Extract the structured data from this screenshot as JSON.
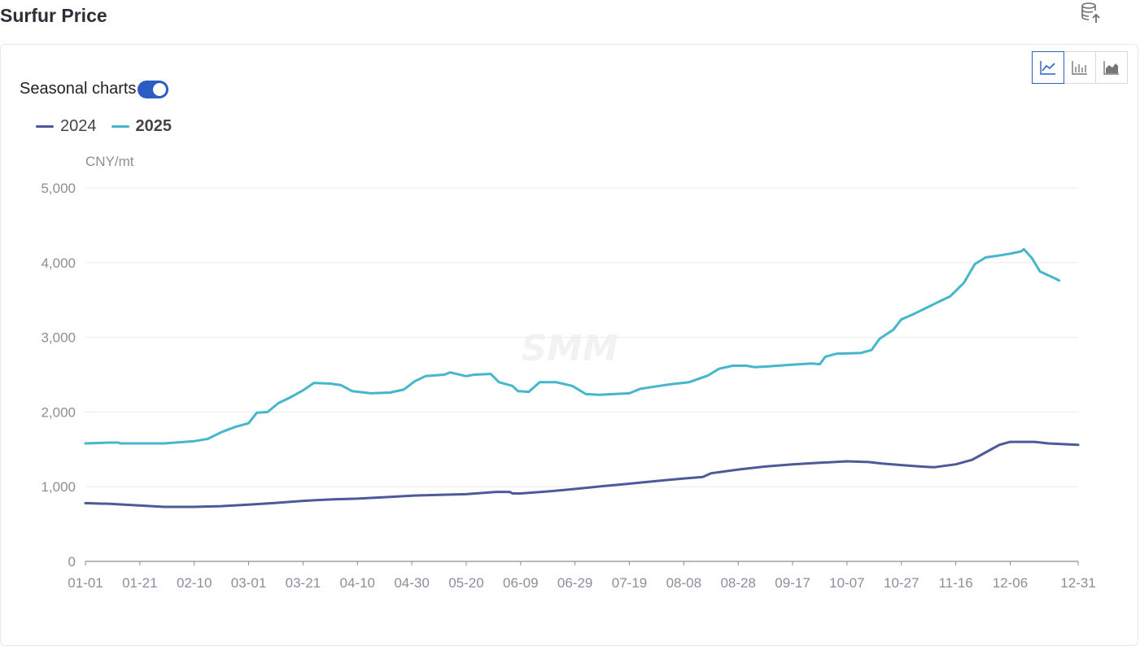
{
  "page": {
    "title": "Surfur Price"
  },
  "toolbar": {
    "export_icon": "database-export-icon",
    "chart_types": [
      {
        "name": "line",
        "icon": "line-chart-icon",
        "active": true
      },
      {
        "name": "bar",
        "icon": "bar-chart-icon",
        "active": false
      },
      {
        "name": "area",
        "icon": "area-chart-icon",
        "active": false
      }
    ]
  },
  "seasonal": {
    "label": "Seasonal charts",
    "enabled": true
  },
  "watermark": "SMM",
  "colors": {
    "series_2024": "#4d5a9a",
    "series_2025": "#45b6cc",
    "toggle": "#2d5bc4",
    "grid": "#ececec",
    "axis": "#8a8f99"
  },
  "chart_data": {
    "type": "line",
    "yunit": "CNY/mt",
    "ylim": [
      0,
      5000
    ],
    "yticks": [
      0,
      1000,
      2000,
      3000,
      4000,
      5000
    ],
    "ytick_labels": [
      "0",
      "1,000",
      "2,000",
      "3,000",
      "4,000",
      "5,000"
    ],
    "xtick_labels": [
      "01-01",
      "01-21",
      "02-10",
      "03-01",
      "03-21",
      "04-10",
      "04-30",
      "05-20",
      "06-09",
      "06-29",
      "07-19",
      "08-08",
      "08-28",
      "09-17",
      "10-07",
      "10-27",
      "11-16",
      "12-06",
      "12-31"
    ],
    "xtick_days": [
      1,
      21,
      41,
      61,
      81,
      101,
      121,
      141,
      161,
      181,
      201,
      221,
      241,
      261,
      281,
      301,
      321,
      341,
      366
    ],
    "xlim_days": [
      1,
      366
    ],
    "legend_position": "top-left",
    "grid": true,
    "series": [
      {
        "name": "2024",
        "bold": false,
        "points": [
          [
            "01-01",
            780
          ],
          [
            "01-10",
            770
          ],
          [
            "01-20",
            750
          ],
          [
            "01-30",
            730
          ],
          [
            "02-10",
            730
          ],
          [
            "02-20",
            740
          ],
          [
            "03-01",
            760
          ],
          [
            "03-10",
            780
          ],
          [
            "03-21",
            810
          ],
          [
            "04-01",
            830
          ],
          [
            "04-10",
            840
          ],
          [
            "04-20",
            860
          ],
          [
            "04-30",
            880
          ],
          [
            "05-10",
            890
          ],
          [
            "05-20",
            900
          ],
          [
            "05-31",
            930
          ],
          [
            "06-05",
            930
          ],
          [
            "06-06",
            910
          ],
          [
            "06-09",
            910
          ],
          [
            "06-20",
            940
          ],
          [
            "06-29",
            970
          ],
          [
            "07-10",
            1010
          ],
          [
            "07-19",
            1040
          ],
          [
            "07-30",
            1080
          ],
          [
            "08-08",
            1110
          ],
          [
            "08-15",
            1130
          ],
          [
            "08-18",
            1180
          ],
          [
            "08-28",
            1230
          ],
          [
            "09-07",
            1270
          ],
          [
            "09-17",
            1300
          ],
          [
            "09-27",
            1320
          ],
          [
            "10-07",
            1340
          ],
          [
            "10-15",
            1330
          ],
          [
            "10-20",
            1310
          ],
          [
            "10-27",
            1290
          ],
          [
            "11-03",
            1270
          ],
          [
            "11-08",
            1260
          ],
          [
            "11-16",
            1300
          ],
          [
            "11-22",
            1360
          ],
          [
            "11-27",
            1460
          ],
          [
            "12-02",
            1560
          ],
          [
            "12-06",
            1600
          ],
          [
            "12-15",
            1600
          ],
          [
            "12-20",
            1580
          ],
          [
            "12-31",
            1560
          ]
        ]
      },
      {
        "name": "2025",
        "bold": true,
        "points": [
          [
            "01-01",
            1580
          ],
          [
            "01-10",
            1590
          ],
          [
            "01-13",
            1590
          ],
          [
            "01-14",
            1580
          ],
          [
            "01-30",
            1580
          ],
          [
            "02-10",
            1610
          ],
          [
            "02-15",
            1640
          ],
          [
            "02-20",
            1730
          ],
          [
            "02-25",
            1800
          ],
          [
            "03-01",
            1850
          ],
          [
            "03-04",
            1990
          ],
          [
            "03-08",
            2000
          ],
          [
            "03-12",
            2120
          ],
          [
            "03-16",
            2190
          ],
          [
            "03-21",
            2290
          ],
          [
            "03-25",
            2390
          ],
          [
            "03-31",
            2380
          ],
          [
            "04-04",
            2360
          ],
          [
            "04-08",
            2280
          ],
          [
            "04-15",
            2250
          ],
          [
            "04-22",
            2260
          ],
          [
            "04-27",
            2300
          ],
          [
            "05-01",
            2410
          ],
          [
            "05-05",
            2480
          ],
          [
            "05-12",
            2500
          ],
          [
            "05-14",
            2530
          ],
          [
            "05-20",
            2480
          ],
          [
            "05-23",
            2500
          ],
          [
            "05-29",
            2510
          ],
          [
            "06-01",
            2400
          ],
          [
            "06-06",
            2350
          ],
          [
            "06-08",
            2280
          ],
          [
            "06-12",
            2270
          ],
          [
            "06-16",
            2400
          ],
          [
            "06-22",
            2400
          ],
          [
            "06-28",
            2350
          ],
          [
            "07-03",
            2240
          ],
          [
            "07-08",
            2230
          ],
          [
            "07-13",
            2240
          ],
          [
            "07-19",
            2250
          ],
          [
            "07-23",
            2310
          ],
          [
            "07-30",
            2350
          ],
          [
            "08-03",
            2370
          ],
          [
            "08-10",
            2400
          ],
          [
            "08-17",
            2490
          ],
          [
            "08-21",
            2580
          ],
          [
            "08-26",
            2620
          ],
          [
            "08-31",
            2620
          ],
          [
            "09-03",
            2600
          ],
          [
            "09-08",
            2610
          ],
          [
            "09-15",
            2630
          ],
          [
            "09-20",
            2640
          ],
          [
            "09-24",
            2650
          ],
          [
            "09-27",
            2640
          ],
          [
            "09-29",
            2740
          ],
          [
            "10-03",
            2780
          ],
          [
            "10-12",
            2790
          ],
          [
            "10-16",
            2830
          ],
          [
            "10-19",
            2980
          ],
          [
            "10-24",
            3100
          ],
          [
            "10-27",
            3240
          ],
          [
            "11-01",
            3320
          ],
          [
            "11-06",
            3410
          ],
          [
            "11-10",
            3480
          ],
          [
            "11-14",
            3550
          ],
          [
            "11-19",
            3730
          ],
          [
            "11-23",
            3980
          ],
          [
            "11-27",
            4070
          ],
          [
            "12-01",
            4090
          ],
          [
            "12-06",
            4120
          ],
          [
            "12-10",
            4150
          ],
          [
            "12-11",
            4180
          ],
          [
            "12-14",
            4060
          ],
          [
            "12-17",
            3880
          ],
          [
            "12-20",
            3830
          ],
          [
            "12-23",
            3780
          ],
          [
            "12-24",
            3760
          ]
        ]
      }
    ]
  }
}
